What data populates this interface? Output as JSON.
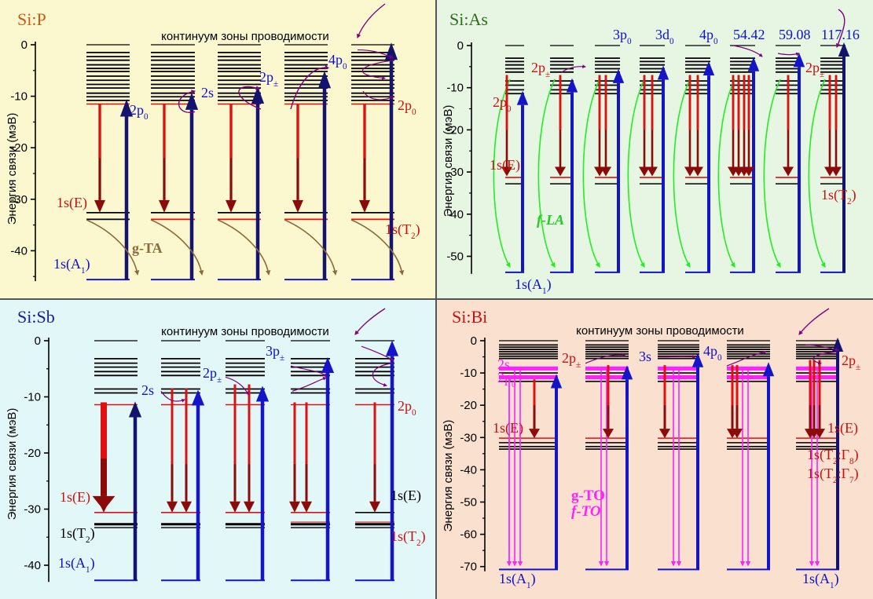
{
  "panels": [
    {
      "id": "sip",
      "title": "Si:P",
      "bg": "#fbf8cf",
      "title_color": "#cc5a14",
      "continuum_label": "континуум зоны проводимости",
      "y_label": "Энергия связи (мэВ)",
      "y_ticks": [
        0,
        -10,
        -20,
        -30,
        -40
      ],
      "y_range": [
        -45.6,
        0
      ],
      "upper_labels": [
        {
          "text": "2p",
          "sub": "0",
          "color": "#1010cc",
          "anchor": "2p0-left"
        },
        {
          "text": "2s",
          "sub": "",
          "color": "#1010cc",
          "anchor": "2s"
        },
        {
          "text": "2p",
          "sub": "±",
          "color": "#1010cc",
          "anchor": "2pm"
        },
        {
          "text": "4p",
          "sub": "0",
          "color": "#1010cc",
          "anchor": "4p0"
        },
        {
          "text": "2p",
          "sub": "0",
          "color": "#cc1010",
          "anchor": "2p0-right"
        }
      ],
      "level_labels": [
        {
          "text": "1s(E)",
          "sub": "",
          "color": "#cc1010"
        },
        {
          "text": "1s(T",
          "sub": "2",
          "tail": ")",
          "color": "#cc1010"
        },
        {
          "text": "1s(A",
          "sub": "1",
          "tail": ")",
          "color": "#1010cc"
        }
      ],
      "phonon_labels": [
        {
          "text": "g-TA",
          "color": "#8b6b3d"
        }
      ]
    },
    {
      "id": "sias",
      "title": "Si:As",
      "bg": "#e6f6e3",
      "title_color": "#2f6b1e",
      "continuum_label": "",
      "y_label": "Энергия связи (мэВ)",
      "y_ticks": [
        0,
        -10,
        -20,
        -30,
        -40,
        -50
      ],
      "y_range": [
        -53.8,
        0
      ],
      "top_labels": [
        "3p0",
        "3d0",
        "4p0",
        "54.42",
        "59.08",
        "117.16"
      ],
      "upper_labels": [
        {
          "text": "2p",
          "sub": "±",
          "color": "#cc1010",
          "anchor": "left"
        },
        {
          "text": "2p",
          "sub": "0",
          "color": "#cc1010",
          "anchor": "left2"
        },
        {
          "text": "2p",
          "sub": "±",
          "color": "#cc1010",
          "anchor": "right"
        }
      ],
      "level_labels": [
        {
          "text": "1s(E)",
          "sub": "",
          "color": "#cc1010"
        },
        {
          "text": "1s(T",
          "sub": "2",
          "tail": ")",
          "color": "#cc1010"
        },
        {
          "text": "1s(A",
          "sub": "1",
          "tail": ")",
          "color": "#1010cc"
        }
      ],
      "phonon_labels": [
        {
          "text": "f-LA",
          "color": "#22cc22"
        }
      ]
    },
    {
      "id": "sisb",
      "title": "Si:Sb",
      "bg": "#e2f7f8",
      "title_color": "#1a1aa0",
      "continuum_label": "континуум зоны проводимости",
      "y_label": "Энергия связи (мэВ)",
      "y_ticks": [
        0,
        -10,
        -20,
        -30,
        -40
      ],
      "y_range": [
        -42.7,
        0
      ],
      "upper_labels": [
        {
          "text": "2s",
          "sub": "",
          "color": "#1010cc"
        },
        {
          "text": "2p",
          "sub": "±",
          "color": "#1010cc"
        },
        {
          "text": "3p",
          "sub": "±",
          "color": "#1010cc"
        },
        {
          "text": "2p",
          "sub": "0",
          "color": "#cc1010"
        }
      ],
      "level_labels": [
        {
          "text": "1s(E)",
          "sub": "",
          "color": "#cc1010"
        },
        {
          "text": "1s(T",
          "sub": "2",
          "tail": ")",
          "color": "#000000"
        },
        {
          "text": "1s(A",
          "sub": "1",
          "tail": ")",
          "color": "#1010cc"
        },
        {
          "text": "1s(E)",
          "sub": "",
          "color": "#000000"
        },
        {
          "text": "1s(T",
          "sub": "2",
          "tail": ")",
          "color": "#cc1010"
        }
      ]
    },
    {
      "id": "sibi",
      "title": "Si:Bi",
      "bg": "#f9e0cf",
      "title_color": "#cc1010",
      "continuum_label": "континуум зоны проводимости",
      "y_label": "Энергия связи (мэВ)",
      "y_ticks": [
        0,
        -10,
        -20,
        -30,
        -40,
        -50,
        -60,
        -70
      ],
      "y_range": [
        -71,
        0
      ],
      "upper_labels": [
        {
          "text": "2s",
          "sub": "",
          "color": "#ff22ff"
        },
        {
          "text": "2p",
          "sub": "0",
          "color": "#ff22ff"
        },
        {
          "text": "2p",
          "sub": "±",
          "color": "#cc1010"
        },
        {
          "text": "3s",
          "sub": "",
          "color": "#1010cc"
        },
        {
          "text": "4p",
          "sub": "0",
          "color": "#1010cc"
        },
        {
          "text": "2p",
          "sub": "±",
          "color": "#cc1010"
        }
      ],
      "level_labels": [
        {
          "text": "1s(E)",
          "sub": "",
          "color": "#cc1010"
        },
        {
          "text": "1s(E)",
          "sub": "",
          "color": "#cc1010"
        },
        {
          "text": "1s(T",
          "sub": "2",
          "mid": ":Γ",
          "sub2": "8",
          "tail": ")",
          "color": "#cc1010"
        },
        {
          "text": "1s(T",
          "sub": "2",
          "mid": ":Γ",
          "sub2": "7",
          "tail": ")",
          "color": "#cc1010"
        },
        {
          "text": "1s(A",
          "sub": "1",
          "tail": ")",
          "color": "#1010cc"
        },
        {
          "text": "1s(A",
          "sub": "1",
          "tail": ")",
          "color": "#1010cc"
        }
      ],
      "phonon_labels": [
        {
          "text": "g-TO",
          "color": "#ff22ff"
        },
        {
          "text": "f-TO",
          "color": "#ff22ff"
        }
      ]
    }
  ],
  "colors": {
    "blue": "#1414c8",
    "navy": "#14146e",
    "red": "#e01010",
    "darkred": "#8b0a0a",
    "purple": "#800080",
    "brown": "#8b6b3d",
    "green": "#22ee22",
    "magenta": "#ff22ff",
    "divider": "#555555"
  }
}
